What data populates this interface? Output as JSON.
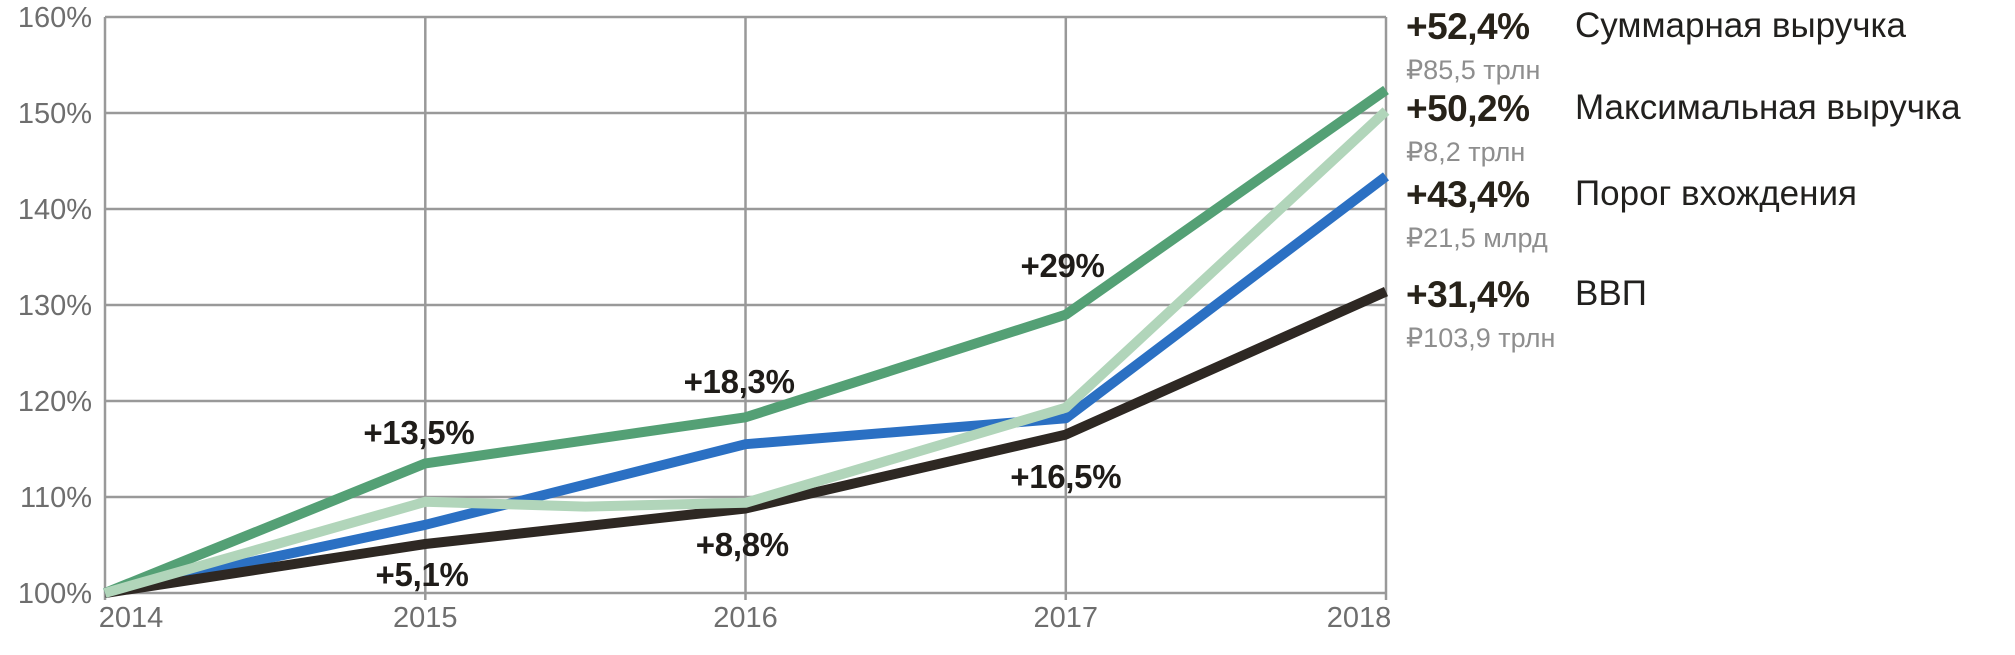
{
  "chart_data": {
    "type": "line",
    "title": "",
    "xlabel": "",
    "ylabel": "",
    "xlim": [
      2014,
      2018
    ],
    "ylim": [
      100,
      160
    ],
    "grid": true,
    "x_ticks": [
      {
        "value": 2014,
        "label": "2014"
      },
      {
        "value": 2015,
        "label": "2015"
      },
      {
        "value": 2016,
        "label": "2016"
      },
      {
        "value": 2017,
        "label": "2017"
      },
      {
        "value": 2018,
        "label": "2018"
      }
    ],
    "y_ticks": [
      {
        "value": 100,
        "label": "100%"
      },
      {
        "value": 110,
        "label": "110%"
      },
      {
        "value": 120,
        "label": "120%"
      },
      {
        "value": 130,
        "label": "130%"
      },
      {
        "value": 140,
        "label": "140%"
      },
      {
        "value": 150,
        "label": "150%"
      },
      {
        "value": 160,
        "label": "160%"
      }
    ],
    "series": [
      {
        "id": "total-revenue",
        "name": "Суммарная выручка",
        "color": "#54a075",
        "z": 1,
        "x": [
          2014,
          2015,
          2016,
          2017,
          2018
        ],
        "values": [
          100,
          113.5,
          118.3,
          129.0,
          152.4
        ]
      },
      {
        "id": "max-revenue",
        "name": "Максимальная выручка",
        "color": "#b1d5ba",
        "z": 4,
        "x": [
          2014,
          2015,
          2015.5,
          2016,
          2017,
          2018
        ],
        "values": [
          100,
          109.5,
          109.0,
          109.4,
          119.3,
          150.2
        ]
      },
      {
        "id": "entry-threshold",
        "name": "Порог вхождения",
        "color": "#2b70c3",
        "z": 2,
        "x": [
          2014,
          2015,
          2016,
          2017,
          2018
        ],
        "values": [
          100,
          107.1,
          115.5,
          118.2,
          143.4
        ]
      },
      {
        "id": "gdp",
        "name": "ВВП",
        "color": "#2e2823",
        "z": 3,
        "x": [
          2014,
          2015,
          2016,
          2017,
          2018
        ],
        "values": [
          100,
          105.1,
          108.8,
          116.5,
          131.4
        ]
      }
    ],
    "annotations": [
      {
        "text": "+13,5%",
        "series": "total-revenue",
        "year": 2014.98,
        "pct": 116.7
      },
      {
        "text": "+18,3%",
        "series": "total-revenue",
        "year": 2015.98,
        "pct": 122.0
      },
      {
        "text": "+29%",
        "series": "total-revenue",
        "year": 2016.99,
        "pct": 134.1
      },
      {
        "text": "+5,1%",
        "series": "gdp",
        "year": 2014.99,
        "pct": 101.9
      },
      {
        "text": "+8,8%",
        "series": "gdp",
        "year": 2015.99,
        "pct": 105.0
      },
      {
        "text": "+16,5%",
        "series": "gdp",
        "year": 2017.0,
        "pct": 112.1
      }
    ],
    "legend_position": "right"
  },
  "legend": {
    "items": [
      {
        "pct": "+52,4%",
        "name": "Суммарная выручка",
        "value": "₽85,5 трлн",
        "color": "#54a075"
      },
      {
        "pct": "+50,2%",
        "name": "Максимальная выручка",
        "value": "₽8,2 трлн",
        "color": "#b1d5ba"
      },
      {
        "pct": "+43,4%",
        "name": "Порог вхождения",
        "value": "₽21,5 млрд",
        "color": "#2b70c3"
      },
      {
        "pct": "+31,4%",
        "name": "ВВП",
        "value": "₽103,9 трлн",
        "color": "#2e2823"
      }
    ]
  }
}
